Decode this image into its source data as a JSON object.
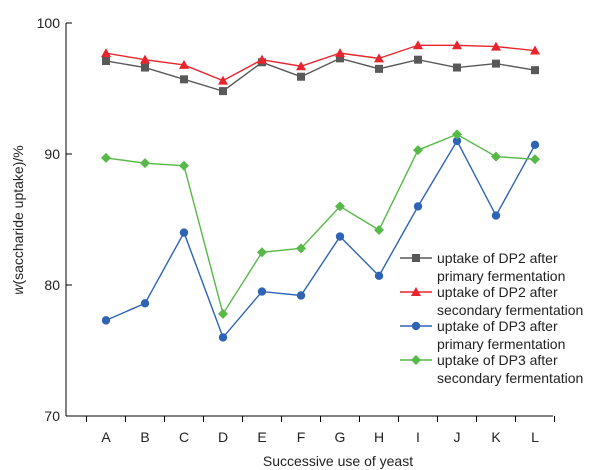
{
  "chart_data": {
    "type": "line",
    "title": "",
    "xlabel": "Successive use of yeast",
    "ylabel_italic": "w",
    "ylabel_rest": "(saccharide uptake)/%",
    "ylim": [
      70,
      100
    ],
    "yticks": [
      70,
      80,
      90,
      100
    ],
    "categories": [
      "A",
      "B",
      "C",
      "D",
      "E",
      "F",
      "G",
      "H",
      "I",
      "J",
      "K",
      "L"
    ],
    "grid": false,
    "legend_position": "right",
    "series": [
      {
        "name_line1": "uptake of DP2 after",
        "name_line2": "primary fermentation",
        "color": "#595959",
        "marker": "square",
        "values": [
          97.1,
          96.6,
          95.7,
          94.8,
          97.0,
          95.9,
          97.3,
          96.5,
          97.2,
          96.6,
          96.9,
          96.4
        ]
      },
      {
        "name_line1": "uptake of DP2 after",
        "name_line2": "secondary fermentation",
        "color": "#e8242c",
        "marker": "triangle",
        "values": [
          97.7,
          97.2,
          96.8,
          95.6,
          97.2,
          96.7,
          97.7,
          97.3,
          98.3,
          98.3,
          98.2,
          97.9
        ]
      },
      {
        "name_line1": "uptake of DP3 after",
        "name_line2": "primary fermentation",
        "color": "#2e63b5",
        "marker": "circle",
        "values": [
          77.3,
          78.6,
          84.0,
          76.0,
          79.5,
          79.2,
          83.7,
          80.7,
          86.0,
          91.0,
          85.3,
          90.7
        ]
      },
      {
        "name_line1": "uptake of DP3 after",
        "name_line2": "secondary fermentation",
        "color": "#57b947",
        "marker": "diamond",
        "values": [
          89.7,
          89.3,
          89.1,
          77.8,
          82.5,
          82.8,
          86.0,
          84.2,
          90.3,
          91.5,
          89.8,
          89.6
        ]
      }
    ]
  }
}
